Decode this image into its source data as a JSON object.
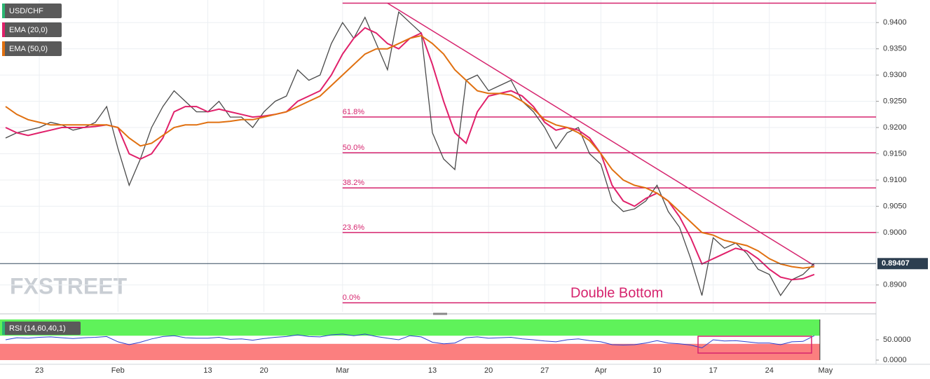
{
  "chart_data": [
    {
      "type": "line",
      "legend": [
        "USD/CHF",
        "EMA (20,0)",
        "EMA (50,0)"
      ],
      "watermark": "FXSTREET",
      "annotation": "Double Bottom",
      "categories": [
        null,
        null,
        null,
        "23",
        null,
        null,
        null,
        null,
        null,
        null,
        "Feb",
        null,
        null,
        null,
        null,
        null,
        null,
        null,
        "13",
        null,
        null,
        null,
        null,
        "20",
        null,
        null,
        null,
        null,
        null,
        null,
        "Mar",
        null,
        null,
        null,
        null,
        null,
        null,
        null,
        "13",
        null,
        null,
        null,
        null,
        "20",
        null,
        null,
        null,
        null,
        "27",
        null,
        null,
        null,
        null,
        "Apr",
        null,
        null,
        null,
        null,
        "10",
        null,
        null,
        null,
        null,
        "17",
        null,
        null,
        null,
        null,
        "24",
        null,
        null,
        null,
        null,
        "May",
        null,
        null,
        null,
        null
      ],
      "series": [
        {
          "name": "USD/CHF",
          "color": "#4a4a4a",
          "values": [
            0.918,
            0.919,
            0.9195,
            0.92,
            0.921,
            0.9205,
            0.9195,
            0.92,
            0.921,
            0.924,
            0.916,
            0.909,
            0.914,
            0.92,
            0.924,
            0.927,
            0.925,
            0.923,
            0.923,
            0.925,
            0.922,
            0.922,
            0.92,
            0.923,
            0.925,
            0.926,
            0.931,
            0.929,
            0.93,
            0.936,
            0.94,
            0.937,
            0.941,
            0.936,
            0.931,
            0.942,
            0.94,
            0.938,
            0.919,
            0.914,
            0.912,
            0.929,
            0.93,
            0.927,
            0.928,
            0.929,
            0.925,
            0.923,
            0.92,
            0.916,
            0.919,
            0.92,
            0.915,
            0.913,
            0.906,
            0.904,
            0.9045,
            0.906,
            0.909,
            0.904,
            0.901,
            0.895,
            0.888,
            0.899,
            0.897,
            0.898,
            0.896,
            0.893,
            0.892,
            0.888,
            0.891,
            0.892,
            0.8941,
            null,
            null,
            null,
            null,
            null
          ]
        },
        {
          "name": "EMA (20,0)",
          "color": "#e0206a",
          "values": [
            0.92,
            0.919,
            0.9185,
            0.919,
            0.9195,
            0.92,
            0.92,
            0.92,
            0.9202,
            0.9205,
            0.92,
            0.915,
            0.914,
            0.915,
            0.918,
            0.923,
            0.924,
            0.924,
            0.923,
            0.9235,
            0.923,
            0.9225,
            0.922,
            0.9222,
            0.9225,
            0.923,
            0.925,
            0.926,
            0.927,
            0.93,
            0.934,
            0.937,
            0.939,
            0.938,
            0.936,
            0.935,
            0.937,
            0.938,
            0.932,
            0.925,
            0.919,
            0.917,
            0.923,
            0.926,
            0.9265,
            0.927,
            0.926,
            0.924,
            0.921,
            0.9195,
            0.92,
            0.9195,
            0.918,
            0.915,
            0.909,
            0.906,
            0.905,
            0.9065,
            0.9075,
            0.906,
            0.903,
            0.899,
            0.894,
            0.895,
            0.896,
            0.897,
            0.8965,
            0.895,
            0.893,
            0.8915,
            0.891,
            0.8912,
            0.892,
            null,
            null,
            null,
            null,
            null
          ]
        },
        {
          "name": "EMA (50,0)",
          "color": "#e07010",
          "values": [
            0.924,
            0.9225,
            0.9215,
            0.921,
            0.9205,
            0.9205,
            0.9205,
            0.9205,
            0.9205,
            0.9205,
            0.92,
            0.918,
            0.9165,
            0.917,
            0.9185,
            0.92,
            0.9205,
            0.9205,
            0.921,
            0.921,
            0.9212,
            0.9215,
            0.9215,
            0.922,
            0.9225,
            0.923,
            0.924,
            0.925,
            0.926,
            0.928,
            0.93,
            0.932,
            0.934,
            0.935,
            0.935,
            0.936,
            0.937,
            0.9375,
            0.936,
            0.934,
            0.931,
            0.929,
            0.927,
            0.9265,
            0.9265,
            0.9262,
            0.925,
            0.9235,
            0.9215,
            0.9205,
            0.92,
            0.919,
            0.9175,
            0.915,
            0.912,
            0.91,
            0.909,
            0.9085,
            0.9075,
            0.906,
            0.904,
            0.902,
            0.9,
            0.8995,
            0.8985,
            0.898,
            0.8975,
            0.8965,
            0.895,
            0.894,
            0.8935,
            0.8932,
            0.8935,
            null,
            null,
            null,
            null,
            null
          ]
        }
      ],
      "trendline": {
        "color": "#d6246e",
        "values": [
          null,
          null,
          null,
          null,
          null,
          null,
          null,
          null,
          null,
          null,
          null,
          null,
          null,
          null,
          null,
          null,
          null,
          null,
          null,
          null,
          null,
          null,
          null,
          null,
          null,
          null,
          null,
          null,
          null,
          null,
          null,
          null,
          null,
          null,
          0.9437,
          null,
          null,
          null,
          null,
          null,
          null,
          null,
          null,
          null,
          null,
          null,
          null,
          null,
          null,
          null,
          null,
          null,
          null,
          null,
          null,
          null,
          null,
          null,
          null,
          null,
          null,
          null,
          null,
          null,
          null,
          null,
          null,
          null,
          null,
          null,
          null,
          null,
          0.8937,
          null,
          null,
          null,
          null,
          null
        ]
      },
      "fib_levels": [
        {
          "value": 0.9437
        },
        {
          "value": 0.922,
          "label": "61.8%"
        },
        {
          "value": 0.9152,
          "label": "50.0%"
        },
        {
          "value": 0.9085,
          "label": "38.2%"
        },
        {
          "value": 0.9,
          "label": "23.6%"
        },
        {
          "value": 0.8866,
          "label": "0.0%"
        }
      ],
      "fib_color": "#d6246e",
      "current_price": {
        "value": 0.89407,
        "label": "0.89407"
      },
      "ylim": [
        0.8849,
        0.9443
      ],
      "yticks": [
        {
          "value": 0.94,
          "label": "0.9400"
        },
        {
          "value": 0.935,
          "label": "0.9350"
        },
        {
          "value": 0.93,
          "label": "0.9300"
        },
        {
          "value": 0.925,
          "label": "0.9250"
        },
        {
          "value": 0.92,
          "label": "0.9200"
        },
        {
          "value": 0.915,
          "label": "0.9150"
        },
        {
          "value": 0.91,
          "label": "0.9100"
        },
        {
          "value": 0.905,
          "label": "0.9050"
        },
        {
          "value": 0.9,
          "label": "0.9000"
        },
        {
          "value": 0.89,
          "label": "0.8900"
        }
      ],
      "grid": true
    },
    {
      "type": "line",
      "legend": "RSI (14,60,40,1)",
      "color": "#2a3fd0",
      "values": [
        50,
        55,
        54,
        56,
        57,
        55,
        53,
        55,
        56,
        58,
        45,
        38,
        44,
        52,
        58,
        60,
        55,
        54,
        54,
        56,
        51,
        52,
        49,
        53,
        56,
        58,
        62,
        58,
        57,
        62,
        64,
        60,
        64,
        58,
        54,
        50,
        60,
        57,
        44,
        40,
        42,
        55,
        57,
        54,
        55,
        56,
        52,
        50,
        47,
        45,
        50,
        52,
        48,
        45,
        38,
        37,
        38,
        42,
        48,
        42,
        40,
        37,
        30,
        50,
        47,
        48,
        45,
        42,
        42,
        38,
        45,
        46,
        60,
        null,
        null,
        null,
        null,
        null
      ],
      "upper": 60,
      "lower": 40,
      "ylim": [
        0,
        100
      ],
      "yticks": [
        {
          "value": 50,
          "label": "50.0000"
        },
        {
          "value": 0,
          "label": "0.0000"
        }
      ]
    }
  ]
}
